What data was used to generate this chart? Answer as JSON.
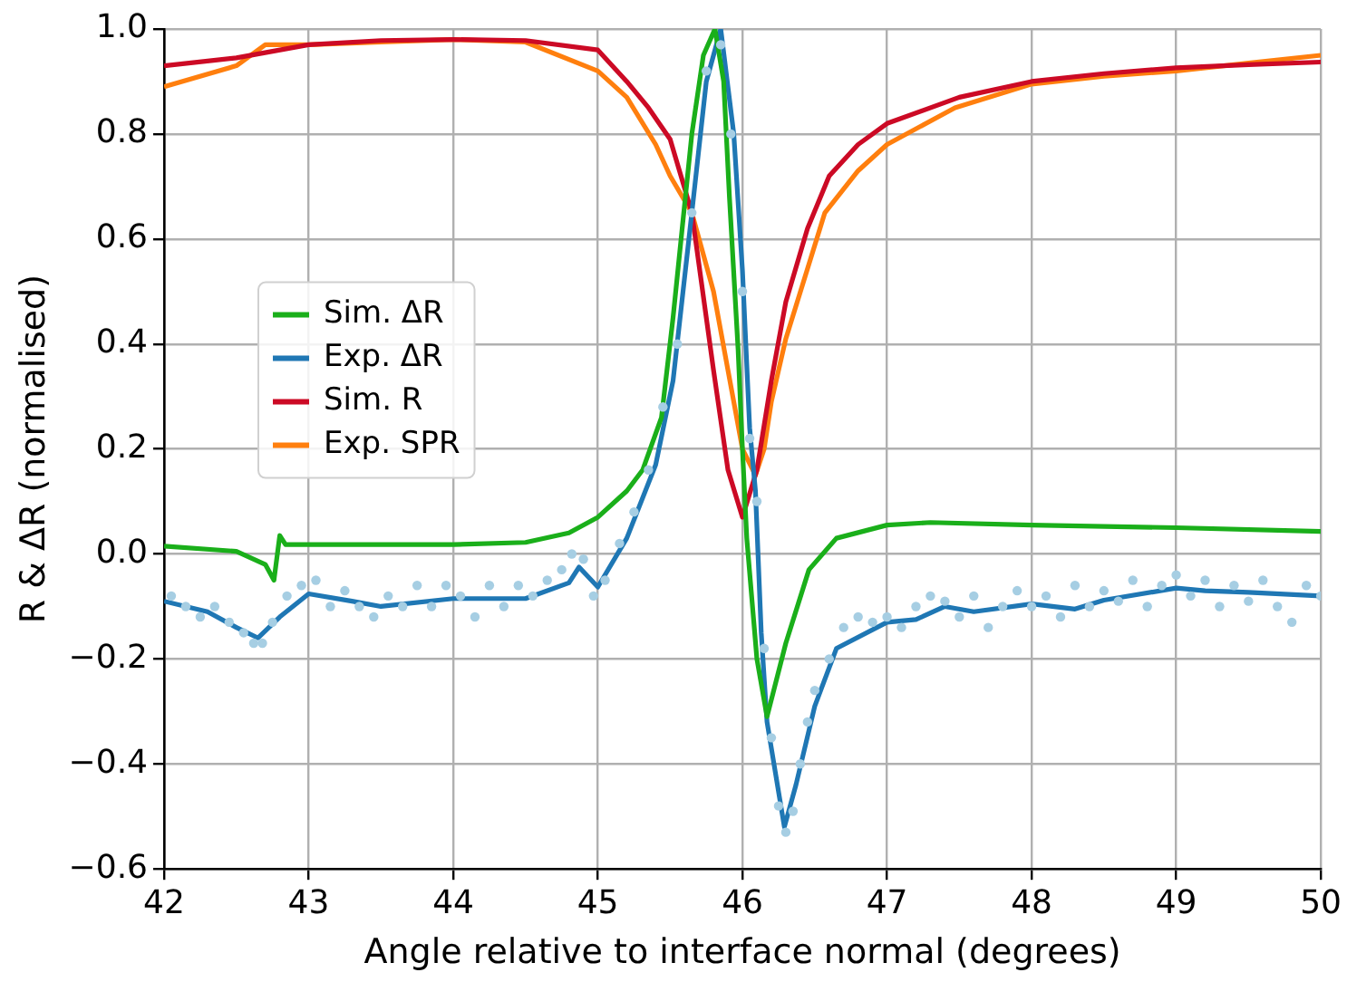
{
  "chart_data": {
    "type": "line",
    "xlabel": "Angle relative to interface normal (degrees)",
    "ylabel": "R & ΔR (normalised)",
    "xlim": [
      42,
      50
    ],
    "xticks": [
      42,
      43,
      44,
      45,
      46,
      47,
      48,
      49,
      50
    ],
    "ylim": [
      -0.6,
      1.0
    ],
    "yticks": [
      {
        "value": -0.6,
        "label": "−0.6"
      },
      {
        "value": -0.4,
        "label": "−0.4"
      },
      {
        "value": -0.2,
        "label": "−0.2"
      },
      {
        "value": 0,
        "label": "0.0"
      },
      {
        "value": 0.2,
        "label": "0.2"
      },
      {
        "value": 0.4,
        "label": "0.4"
      },
      {
        "value": 0.6,
        "label": "0.6"
      },
      {
        "value": 0.8,
        "label": "0.8"
      },
      {
        "value": 1.0,
        "label": "1.0"
      }
    ],
    "grid": true,
    "legend": "center left",
    "marker": "none",
    "line_style": "solid",
    "series": [
      {
        "type": "scatter",
        "marker": "circle",
        "color": "#a6cee3",
        "x": [
          42.05,
          42.15,
          42.25,
          42.35,
          42.45,
          42.55,
          42.62,
          42.68,
          42.75,
          42.85,
          42.95,
          43.05,
          43.15,
          43.25,
          43.35,
          43.45,
          43.55,
          43.65,
          43.75,
          43.85,
          43.95,
          44.05,
          44.15,
          44.25,
          44.35,
          44.45,
          44.55,
          44.65,
          44.75,
          44.82,
          44.9,
          44.97,
          45.05,
          45.15,
          45.25,
          45.35,
          45.45,
          45.55,
          45.65,
          45.75,
          45.85,
          45.92,
          46.0,
          46.05,
          46.1,
          46.15,
          46.2,
          46.25,
          46.3,
          46.35,
          46.4,
          46.45,
          46.5,
          46.6,
          46.7,
          46.8,
          46.9,
          47.0,
          47.1,
          47.2,
          47.3,
          47.4,
          47.5,
          47.6,
          47.7,
          47.8,
          47.9,
          48.0,
          48.1,
          48.2,
          48.3,
          48.4,
          48.5,
          48.6,
          48.7,
          48.8,
          48.9,
          49.0,
          49.1,
          49.2,
          49.3,
          49.4,
          49.5,
          49.6,
          49.7,
          49.8,
          49.9,
          50.0
        ],
        "values": [
          -0.08,
          -0.1,
          -0.12,
          -0.1,
          -0.13,
          -0.15,
          -0.17,
          -0.17,
          -0.13,
          -0.08,
          -0.06,
          -0.05,
          -0.1,
          -0.07,
          -0.1,
          -0.12,
          -0.08,
          -0.1,
          -0.06,
          -0.1,
          -0.06,
          -0.08,
          -0.12,
          -0.06,
          -0.1,
          -0.06,
          -0.08,
          -0.05,
          -0.03,
          0.0,
          -0.01,
          -0.08,
          -0.05,
          0.02,
          0.08,
          0.16,
          0.28,
          0.4,
          0.65,
          0.92,
          0.97,
          0.8,
          0.5,
          0.22,
          0.1,
          -0.18,
          -0.35,
          -0.48,
          -0.53,
          -0.49,
          -0.4,
          -0.32,
          -0.26,
          -0.2,
          -0.14,
          -0.12,
          -0.13,
          -0.12,
          -0.14,
          -0.1,
          -0.08,
          -0.09,
          -0.12,
          -0.08,
          -0.14,
          -0.1,
          -0.07,
          -0.1,
          -0.08,
          -0.12,
          -0.06,
          -0.1,
          -0.07,
          -0.09,
          -0.05,
          -0.1,
          -0.06,
          -0.04,
          -0.08,
          -0.05,
          -0.1,
          -0.06,
          -0.09,
          -0.05,
          -0.1,
          -0.13,
          -0.06,
          -0.08
        ]
      },
      {
        "name": "Sim. ΔR",
        "color": "#1aaf1a",
        "x": [
          42,
          42.5,
          42.7,
          42.76,
          42.8,
          42.84,
          43,
          44,
          44.5,
          44.8,
          45,
          45.2,
          45.31,
          45.44,
          45.52,
          45.65,
          45.73,
          45.81,
          45.87,
          45.91,
          45.97,
          46.0,
          46.03,
          46.1,
          46.17,
          46.3,
          46.46,
          46.65,
          47,
          47.3,
          48,
          49,
          50
        ],
        "values": [
          0.015,
          0.005,
          -0.02,
          -0.05,
          0.035,
          0.018,
          0.018,
          0.018,
          0.022,
          0.04,
          0.07,
          0.12,
          0.16,
          0.26,
          0.45,
          0.8,
          0.95,
          1.0,
          0.9,
          0.68,
          0.39,
          0.2,
          0.03,
          -0.2,
          -0.31,
          -0.17,
          -0.03,
          0.03,
          0.055,
          0.06,
          0.055,
          0.05,
          0.043
        ]
      },
      {
        "name": "Exp. ΔR",
        "color": "#1f77b4",
        "x": [
          42,
          42.3,
          42.5,
          42.65,
          42.8,
          43,
          43.3,
          43.5,
          44,
          44.5,
          44.8,
          44.87,
          45.0,
          45.2,
          45.4,
          45.52,
          45.65,
          45.75,
          45.85,
          45.94,
          46.0,
          46.05,
          46.09,
          46.13,
          46.17,
          46.29,
          46.37,
          46.5,
          46.65,
          47.0,
          47.2,
          47.4,
          47.6,
          48,
          48.3,
          48.5,
          49,
          49.2,
          49.5,
          50
        ],
        "values": [
          -0.09,
          -0.11,
          -0.14,
          -0.16,
          -0.12,
          -0.076,
          -0.09,
          -0.1,
          -0.085,
          -0.085,
          -0.055,
          -0.025,
          -0.063,
          0.03,
          0.17,
          0.33,
          0.65,
          0.9,
          1.0,
          0.8,
          0.54,
          0.24,
          0.12,
          -0.15,
          -0.32,
          -0.52,
          -0.44,
          -0.29,
          -0.18,
          -0.13,
          -0.125,
          -0.1,
          -0.11,
          -0.095,
          -0.105,
          -0.088,
          -0.065,
          -0.07,
          -0.073,
          -0.08
        ]
      },
      {
        "name": "Sim. R",
        "color": "#cc0a25",
        "x": [
          42,
          42.5,
          43,
          43.5,
          44,
          44.5,
          45,
          45.2,
          45.35,
          45.5,
          45.65,
          45.8,
          45.9,
          46.0,
          46.1,
          46.2,
          46.3,
          46.45,
          46.6,
          46.8,
          47,
          47.5,
          48,
          48.5,
          49,
          49.5,
          50
        ],
        "values": [
          0.93,
          0.945,
          0.97,
          0.978,
          0.98,
          0.978,
          0.96,
          0.9,
          0.85,
          0.79,
          0.65,
          0.35,
          0.16,
          0.07,
          0.16,
          0.33,
          0.48,
          0.62,
          0.72,
          0.78,
          0.82,
          0.87,
          0.9,
          0.915,
          0.926,
          0.932,
          0.937
        ]
      },
      {
        "name": "Exp. SPR",
        "color": "#ff7f0e",
        "x": [
          42,
          42.5,
          42.7,
          43,
          43.5,
          44,
          44.5,
          45,
          45.2,
          45.4,
          45.5,
          45.65,
          45.8,
          45.9,
          46.0,
          46.09,
          46.15,
          46.2,
          46.3,
          46.57,
          46.8,
          47,
          47.47,
          48,
          48.5,
          49,
          49.5,
          50
        ],
        "values": [
          0.89,
          0.93,
          0.97,
          0.97,
          0.975,
          0.98,
          0.975,
          0.92,
          0.87,
          0.78,
          0.72,
          0.65,
          0.5,
          0.35,
          0.2,
          0.15,
          0.2,
          0.29,
          0.41,
          0.65,
          0.73,
          0.78,
          0.85,
          0.895,
          0.91,
          0.92,
          0.935,
          0.95
        ]
      }
    ]
  }
}
